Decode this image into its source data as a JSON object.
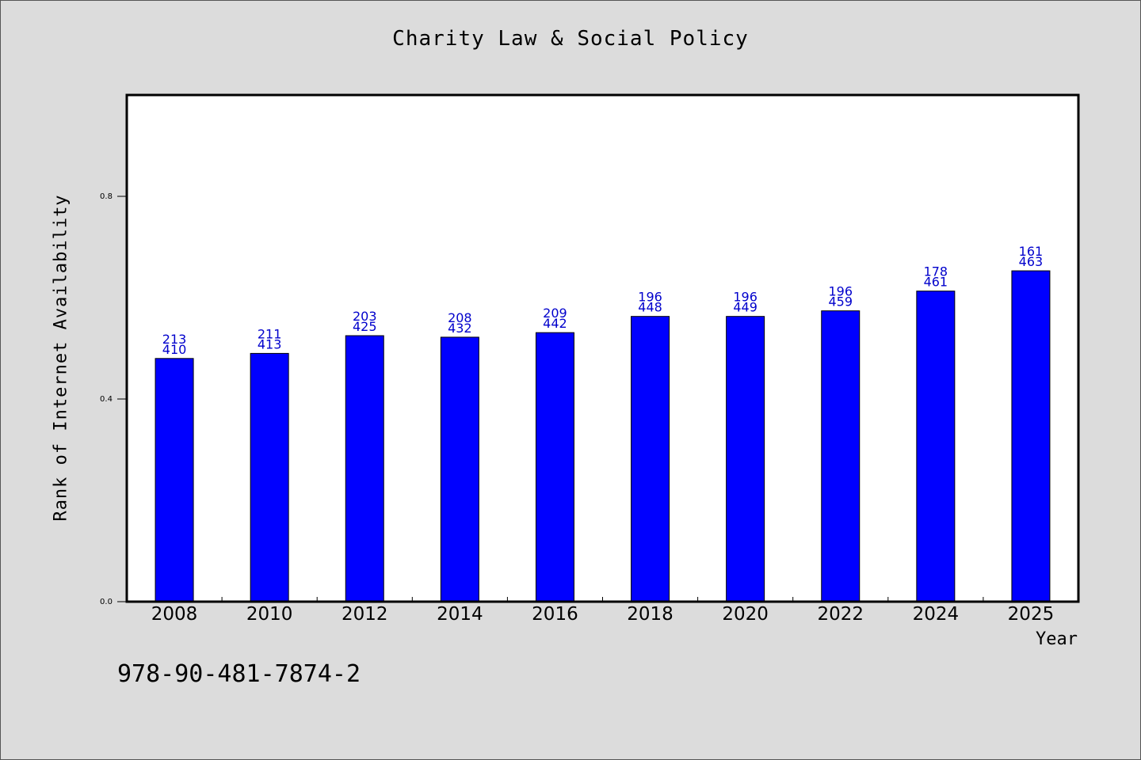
{
  "chart_data": {
    "type": "bar",
    "title": "Charity Law & Social Policy",
    "xlabel": "Year",
    "ylabel": "Rank of Internet Availability",
    "categories": [
      "2008",
      "2010",
      "2012",
      "2014",
      "2016",
      "2018",
      "2020",
      "2022",
      "2024",
      "2025"
    ],
    "values": [
      0.48,
      0.49,
      0.525,
      0.522,
      0.531,
      0.563,
      0.563,
      0.574,
      0.613,
      0.653
    ],
    "labels_top": [
      "213",
      "211",
      "203",
      "208",
      "209",
      "196",
      "196",
      "196",
      "178",
      "161"
    ],
    "labels_bottom": [
      "410",
      "413",
      "425",
      "432",
      "442",
      "448",
      "449",
      "459",
      "461",
      "463"
    ],
    "yticks": [
      0.0,
      0.4,
      0.8
    ],
    "ytick_labels": [
      "0.0",
      "0.4",
      "0.8"
    ],
    "ylim": [
      0,
      1.0
    ],
    "grid": false,
    "bar_color": "#0000ff",
    "label_color": "#0000cc"
  },
  "footer": {
    "code": "978-90-481-7874-2"
  }
}
